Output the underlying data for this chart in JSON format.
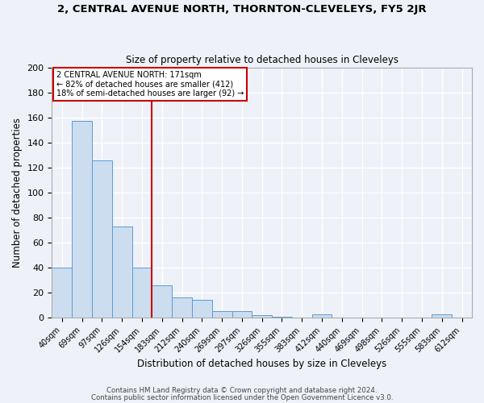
{
  "title": "2, CENTRAL AVENUE NORTH, THORNTON-CLEVELEYS, FY5 2JR",
  "subtitle": "Size of property relative to detached houses in Cleveleys",
  "xlabel": "Distribution of detached houses by size in Cleveleys",
  "ylabel": "Number of detached properties",
  "bar_color": "#ccddf0",
  "bar_edge_color": "#5b9bd5",
  "background_color": "#eef2f8",
  "grid_color": "#d8e0ee",
  "categories": [
    "40sqm",
    "69sqm",
    "97sqm",
    "126sqm",
    "154sqm",
    "183sqm",
    "212sqm",
    "240sqm",
    "269sqm",
    "297sqm",
    "326sqm",
    "355sqm",
    "383sqm",
    "412sqm",
    "440sqm",
    "469sqm",
    "498sqm",
    "526sqm",
    "555sqm",
    "583sqm",
    "612sqm"
  ],
  "values": [
    40,
    157,
    126,
    73,
    40,
    26,
    16,
    14,
    5,
    5,
    2,
    1,
    0,
    3,
    0,
    0,
    0,
    0,
    0,
    3,
    0
  ],
  "ylim": [
    0,
    200
  ],
  "yticks": [
    0,
    20,
    40,
    60,
    80,
    100,
    120,
    140,
    160,
    180,
    200
  ],
  "vline_x": 5,
  "vline_color": "#cc0000",
  "annotation_title": "2 CENTRAL AVENUE NORTH: 171sqm",
  "annotation_line1": "← 82% of detached houses are smaller (412)",
  "annotation_line2": "18% of semi-detached houses are larger (92) →",
  "annotation_box_color": "#cc0000",
  "footer_line1": "Contains HM Land Registry data © Crown copyright and database right 2024.",
  "footer_line2": "Contains public sector information licensed under the Open Government Licence v3.0."
}
